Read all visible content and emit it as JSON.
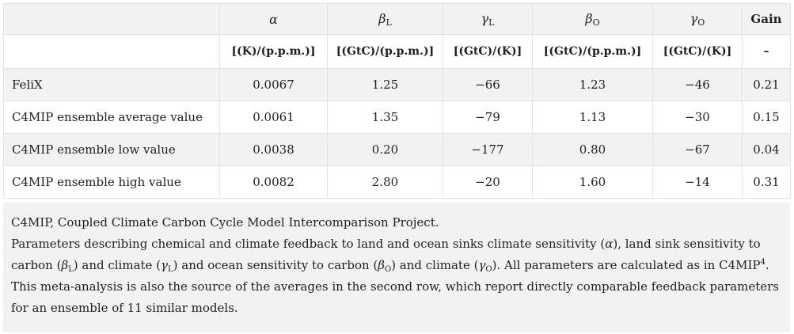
{
  "table": {
    "header_symbols": [
      {
        "base": "α",
        "sub": ""
      },
      {
        "base": "β",
        "sub": "L"
      },
      {
        "base": "γ",
        "sub": "L"
      },
      {
        "base": "β",
        "sub": "O"
      },
      {
        "base": "γ",
        "sub": "O"
      }
    ],
    "gain_header": "Gain",
    "units": [
      "[(K)/(p.p.m.)]",
      "[(GtC)/(p.p.m.)]",
      "[(GtC)/(K)]",
      "[(GtC)/(p.p.m.)]",
      "[(GtC)/(K)]",
      "–"
    ],
    "rows": [
      {
        "label": "FeliX",
        "values": [
          "0.0067",
          "1.25",
          "−66",
          "1.23",
          "−46",
          "0.21"
        ]
      },
      {
        "label": "C4MIP ensemble average value",
        "values": [
          "0.0061",
          "1.35",
          "−79",
          "1.13",
          "−30",
          "0.15"
        ]
      },
      {
        "label": "C4MIP ensemble low value",
        "values": [
          "0.0038",
          "0.20",
          "−177",
          "0.80",
          "−67",
          "0.04"
        ]
      },
      {
        "label": "C4MIP ensemble high value",
        "values": [
          "0.0082",
          "2.80",
          "−20",
          "1.60",
          "−14",
          "0.31"
        ]
      }
    ]
  },
  "caption": {
    "line1": "C4MIP, Coupled Climate Carbon Cycle Model Intercomparison Project.",
    "p1": "Parameters describing chemical and climate feedback to land and ocean sinks climate sensitivity (",
    "alpha": "α",
    "p2": "), land sink sensitivity to carbon (",
    "betaL": "β",
    "subL": "L",
    "p3": ") and climate (",
    "gammaL": "γ",
    "subL2": "L",
    "p4": ") and ocean sensitivity to carbon (",
    "betaO": "β",
    "subO": "O",
    "p5": ") and climate (",
    "gammaO": "γ",
    "subO2": "O",
    "p6": "). All parameters are calculated as in C4MIP",
    "ref": "4",
    "p7": ". This meta-analysis is also the source of the averages in the second row, which report directly comparable feedback parameters for an ensemble of 11 similar models."
  }
}
